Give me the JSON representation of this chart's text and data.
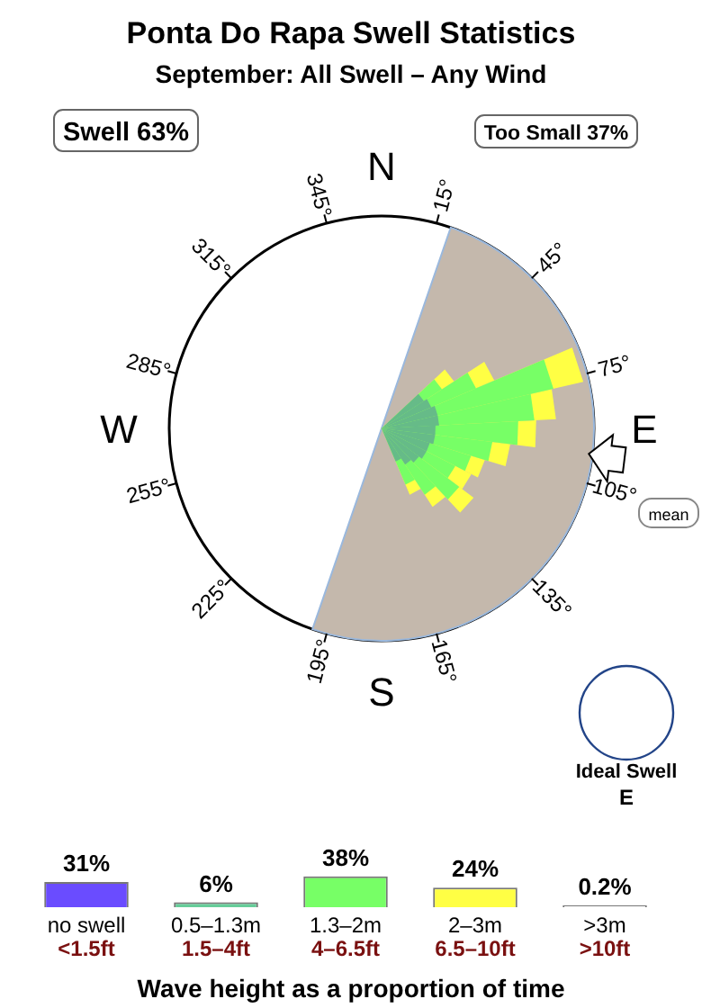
{
  "chart_data": [
    {
      "type": "other",
      "title": "Ponta Do Rapa Swell Statistics",
      "subtitle": "September: All Swell – Any Wind",
      "annotations": [
        "Swell 63%",
        "Too Small 37%",
        "N",
        "E",
        "S",
        "W",
        "15°",
        "45°",
        "75°",
        "105°",
        "135°",
        "165°",
        "195°",
        "225°",
        "255°",
        "285°",
        "315°",
        "345°",
        "mean",
        "Ideal Swell",
        "E"
      ]
    },
    {
      "type": "bar",
      "categories": [
        "no swell\n<1.5ft",
        "0.5–1.3m\n1.5–4ft",
        "1.3–2m\n4–6.5ft",
        "2–3m\n6.5–10ft",
        ">3m\n>10ft"
      ],
      "values": [
        31,
        6,
        38,
        24,
        0.2
      ],
      "colors": [
        "#6a4cff",
        "#66cc99",
        "#77ff66",
        "#ffff44",
        "#ffffff"
      ],
      "value_labels": [
        "31%",
        "6%",
        "38%",
        "24%",
        "0.2%"
      ],
      "tick_labels": false,
      "xlabel": "Wave height as a proportion of time"
    }
  ]
}
